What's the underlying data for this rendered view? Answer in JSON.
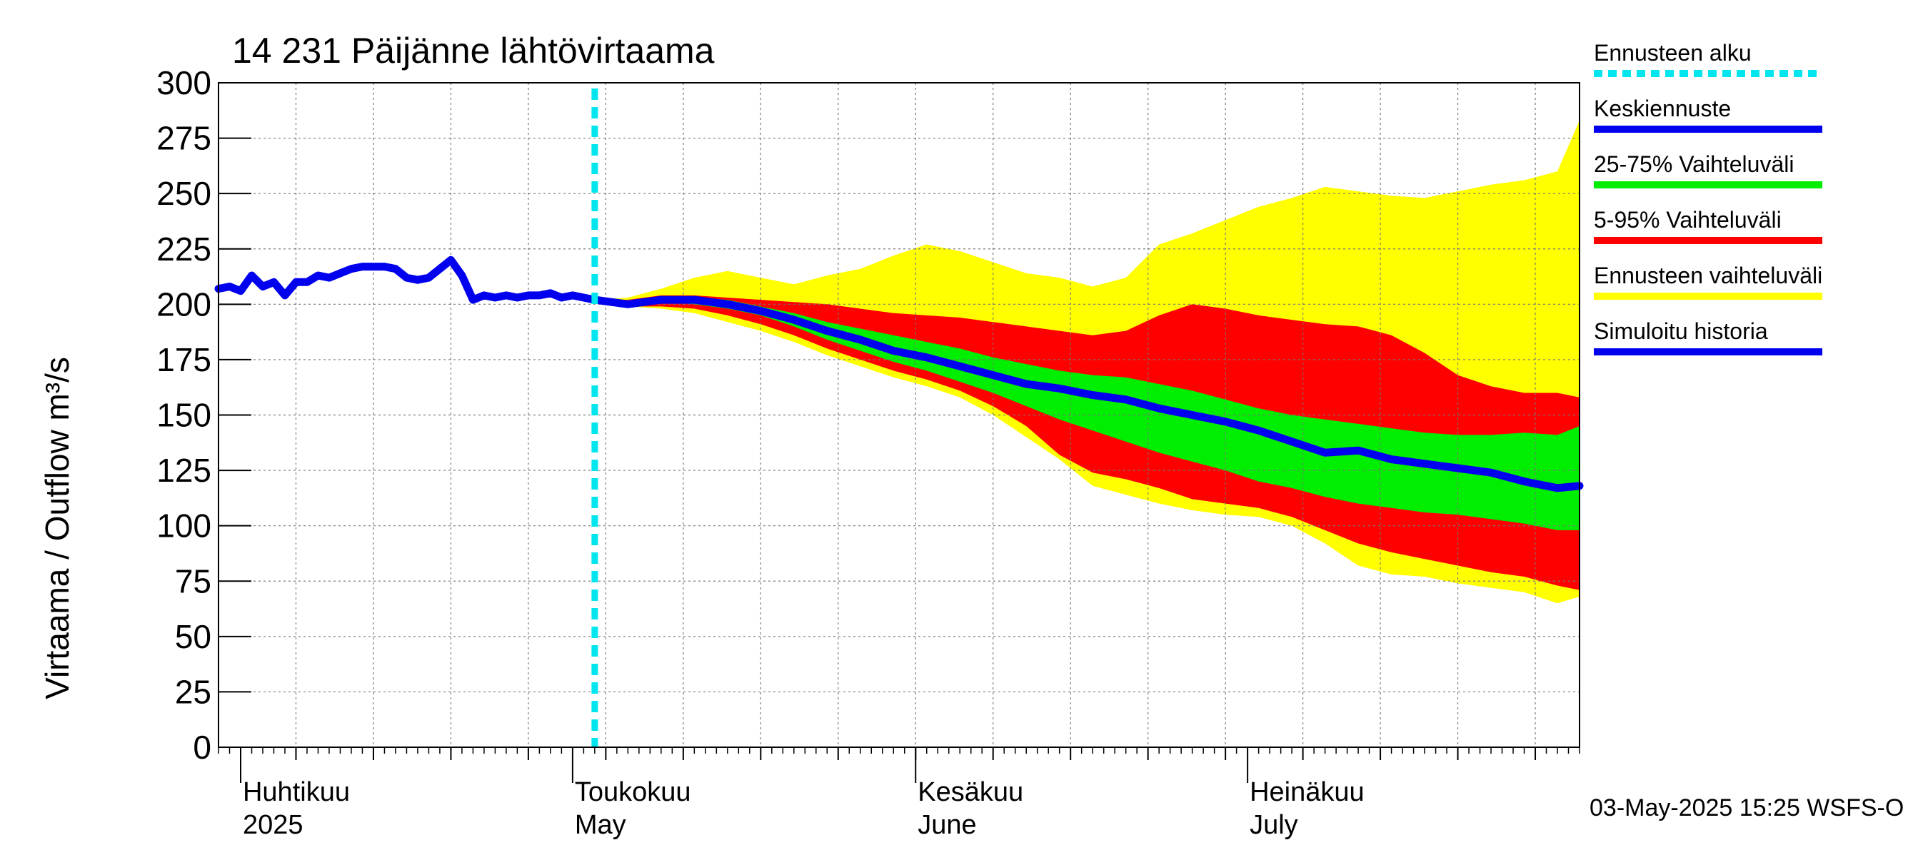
{
  "chart_data": {
    "type": "area",
    "title": "14 231 Päijänne lähtövirtaama",
    "ylabel": "Virtaama / Outflow    m³/s",
    "ylim": [
      0,
      300
    ],
    "yticks": [
      0,
      25,
      50,
      75,
      100,
      125,
      150,
      175,
      200,
      225,
      250,
      275,
      300
    ],
    "xlim": [
      "2025-03-30",
      "2025-07-31"
    ],
    "grid": true,
    "legend_placement": "right",
    "months": [
      {
        "date": "2025-04-01",
        "fi": "Huhtikuu",
        "en": "2025"
      },
      {
        "date": "2025-05-01",
        "fi": "Toukokuu",
        "en": "May"
      },
      {
        "date": "2025-06-01",
        "fi": "Kesäkuu",
        "en": "June"
      },
      {
        "date": "2025-07-01",
        "fi": "Heinäkuu",
        "en": "July"
      }
    ],
    "forecast_start": "2025-05-03",
    "footer": "03-May-2025 15:25 WSFS-O",
    "legend": [
      {
        "label": "Ennusteen alku",
        "color": "#00e5ee",
        "style": "dashed"
      },
      {
        "label": "Keskiennuste",
        "color": "#0000ee",
        "style": "solid"
      },
      {
        "label": "25-75% Vaihteluväli",
        "color": "#00ee00",
        "style": "solid"
      },
      {
        "label": "5-95% Vaihteluväli",
        "color": "#ff0000",
        "style": "solid"
      },
      {
        "label": "Ennusteen vaihteluväli",
        "color": "#ffff00",
        "style": "solid"
      },
      {
        "label": "Simuloitu historia",
        "color": "#0000ee",
        "style": "solid"
      }
    ],
    "series": [
      {
        "name": "Simuloitu historia",
        "color": "#0000ee",
        "x": [
          "2025-03-30",
          "2025-03-31",
          "2025-04-01",
          "2025-04-02",
          "2025-04-03",
          "2025-04-04",
          "2025-04-05",
          "2025-04-06",
          "2025-04-07",
          "2025-04-08",
          "2025-04-09",
          "2025-04-10",
          "2025-04-11",
          "2025-04-12",
          "2025-04-13",
          "2025-04-14",
          "2025-04-15",
          "2025-04-16",
          "2025-04-17",
          "2025-04-18",
          "2025-04-19",
          "2025-04-20",
          "2025-04-21",
          "2025-04-22",
          "2025-04-23",
          "2025-04-24",
          "2025-04-25",
          "2025-04-26",
          "2025-04-27",
          "2025-04-28",
          "2025-04-29",
          "2025-04-30",
          "2025-05-01",
          "2025-05-02",
          "2025-05-03"
        ],
        "y": [
          207,
          208,
          206,
          213,
          208,
          210,
          204,
          210,
          210,
          213,
          212,
          214,
          216,
          217,
          217,
          217,
          216,
          212,
          211,
          212,
          216,
          220,
          213,
          202,
          204,
          203,
          204,
          203,
          204,
          204,
          205,
          203,
          204,
          203,
          202
        ]
      },
      {
        "name": "Keskiennuste",
        "color": "#0000ee",
        "x": [
          "2025-05-03",
          "2025-05-06",
          "2025-05-09",
          "2025-05-12",
          "2025-05-15",
          "2025-05-18",
          "2025-05-21",
          "2025-05-24",
          "2025-05-27",
          "2025-05-30",
          "2025-06-02",
          "2025-06-05",
          "2025-06-08",
          "2025-06-11",
          "2025-06-14",
          "2025-06-17",
          "2025-06-20",
          "2025-06-23",
          "2025-06-26",
          "2025-06-29",
          "2025-07-02",
          "2025-07-05",
          "2025-07-08",
          "2025-07-11",
          "2025-07-14",
          "2025-07-17",
          "2025-07-20",
          "2025-07-23",
          "2025-07-26",
          "2025-07-29",
          "2025-07-31"
        ],
        "y": [
          202,
          200,
          202,
          202,
          200,
          197,
          193,
          188,
          184,
          179,
          176,
          172,
          168,
          164,
          162,
          159,
          157,
          153,
          150,
          147,
          143,
          138,
          133,
          134,
          130,
          128,
          126,
          124,
          120,
          117,
          118
        ]
      }
    ],
    "bands": [
      {
        "name": "Ennusteen vaihteluväli",
        "color": "#ffff00",
        "x": [
          "2025-05-03",
          "2025-05-06",
          "2025-05-09",
          "2025-05-12",
          "2025-05-15",
          "2025-05-18",
          "2025-05-21",
          "2025-05-24",
          "2025-05-27",
          "2025-05-30",
          "2025-06-02",
          "2025-06-05",
          "2025-06-08",
          "2025-06-11",
          "2025-06-14",
          "2025-06-17",
          "2025-06-20",
          "2025-06-23",
          "2025-06-26",
          "2025-06-29",
          "2025-07-02",
          "2025-07-05",
          "2025-07-08",
          "2025-07-11",
          "2025-07-14",
          "2025-07-17",
          "2025-07-20",
          "2025-07-23",
          "2025-07-26",
          "2025-07-29",
          "2025-07-31"
        ],
        "lower": [
          202,
          199,
          198,
          196,
          192,
          188,
          183,
          177,
          172,
          167,
          163,
          158,
          150,
          140,
          130,
          118,
          114,
          110,
          107,
          105,
          104,
          100,
          92,
          82,
          78,
          77,
          74,
          72,
          70,
          65,
          68
        ],
        "upper": [
          202,
          203,
          207,
          212,
          215,
          212,
          209,
          213,
          216,
          222,
          227,
          224,
          219,
          214,
          212,
          208,
          212,
          227,
          232,
          238,
          244,
          248,
          253,
          251,
          249,
          248,
          251,
          254,
          256,
          260,
          283
        ]
      },
      {
        "name": "5-95% Vaihteluväli",
        "color": "#ff0000",
        "x": [
          "2025-05-03",
          "2025-05-06",
          "2025-05-09",
          "2025-05-12",
          "2025-05-15",
          "2025-05-18",
          "2025-05-21",
          "2025-05-24",
          "2025-05-27",
          "2025-05-30",
          "2025-06-02",
          "2025-06-05",
          "2025-06-08",
          "2025-06-11",
          "2025-06-14",
          "2025-06-17",
          "2025-06-20",
          "2025-06-23",
          "2025-06-26",
          "2025-06-29",
          "2025-07-02",
          "2025-07-05",
          "2025-07-08",
          "2025-07-11",
          "2025-07-14",
          "2025-07-17",
          "2025-07-20",
          "2025-07-23",
          "2025-07-26",
          "2025-07-29",
          "2025-07-31"
        ],
        "lower": [
          202,
          199,
          199,
          198,
          195,
          191,
          186,
          180,
          175,
          170,
          166,
          161,
          154,
          145,
          132,
          124,
          121,
          117,
          112,
          110,
          108,
          104,
          98,
          92,
          88,
          85,
          82,
          79,
          77,
          73,
          71
        ],
        "upper": [
          202,
          202,
          204,
          204,
          203,
          202,
          201,
          200,
          198,
          196,
          195,
          194,
          192,
          190,
          188,
          186,
          188,
          195,
          200,
          198,
          195,
          193,
          191,
          190,
          186,
          178,
          168,
          163,
          160,
          160,
          158
        ]
      },
      {
        "name": "25-75% Vaihteluväli",
        "color": "#00ee00",
        "x": [
          "2025-05-03",
          "2025-05-06",
          "2025-05-09",
          "2025-05-12",
          "2025-05-15",
          "2025-05-18",
          "2025-05-21",
          "2025-05-24",
          "2025-05-27",
          "2025-05-30",
          "2025-06-02",
          "2025-06-05",
          "2025-06-08",
          "2025-06-11",
          "2025-06-14",
          "2025-06-17",
          "2025-06-20",
          "2025-06-23",
          "2025-06-26",
          "2025-06-29",
          "2025-07-02",
          "2025-07-05",
          "2025-07-08",
          "2025-07-11",
          "2025-07-14",
          "2025-07-17",
          "2025-07-20",
          "2025-07-23",
          "2025-07-26",
          "2025-07-29",
          "2025-07-31"
        ],
        "lower": [
          202,
          200,
          201,
          200,
          198,
          195,
          190,
          184,
          179,
          174,
          170,
          165,
          160,
          154,
          148,
          143,
          138,
          133,
          129,
          125,
          120,
          117,
          113,
          110,
          108,
          106,
          105,
          103,
          101,
          98,
          98
        ],
        "upper": [
          202,
          201,
          203,
          203,
          202,
          199,
          196,
          192,
          189,
          186,
          183,
          180,
          176,
          173,
          170,
          168,
          167,
          164,
          161,
          157,
          153,
          150,
          148,
          146,
          144,
          142,
          141,
          141,
          142,
          141,
          145
        ]
      }
    ]
  }
}
